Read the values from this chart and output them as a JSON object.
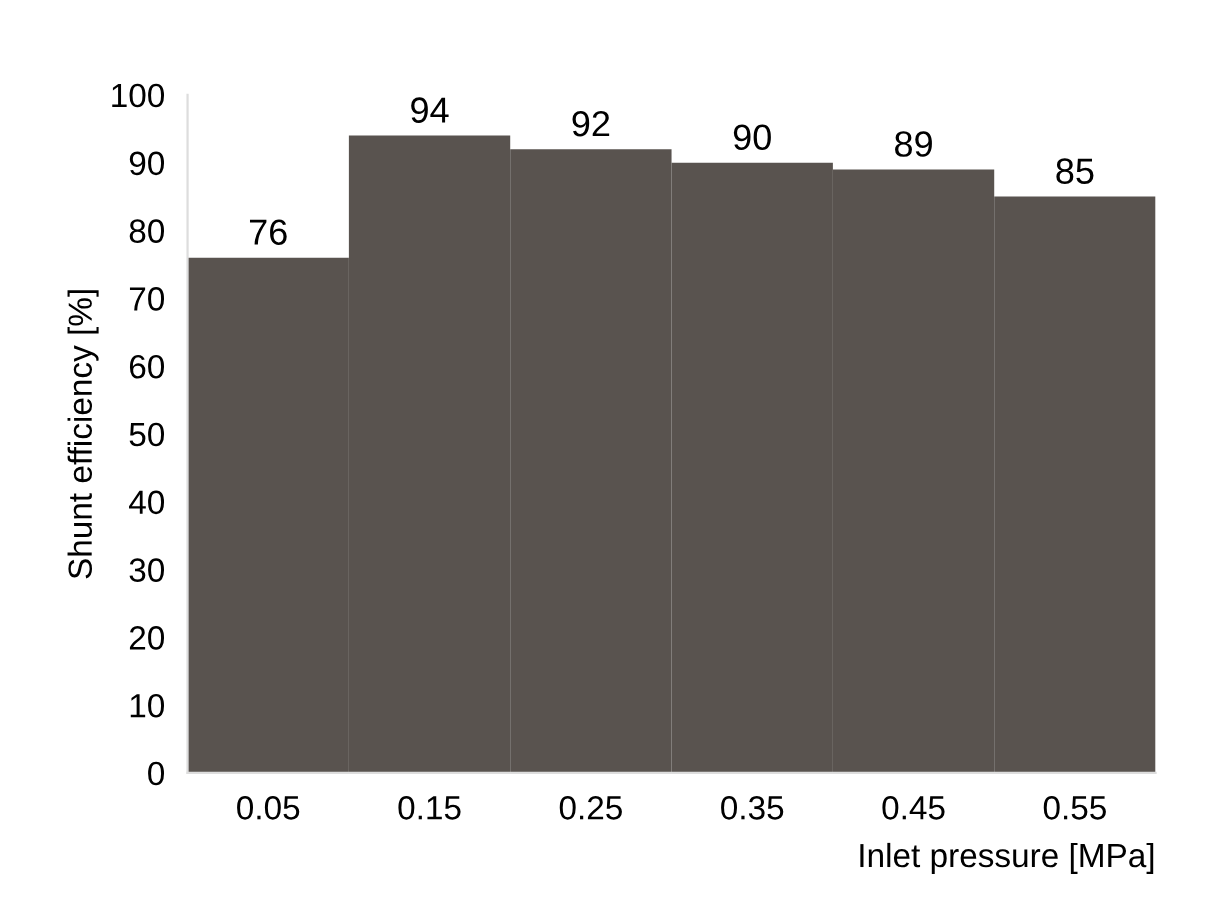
{
  "chart_data": {
    "type": "bar",
    "xlabel": "Inlet pressure [MPa]",
    "ylabel": "Shunt efficiency [%]",
    "categories": [
      "0.05",
      "0.15",
      "0.25",
      "0.35",
      "0.45",
      "0.55"
    ],
    "values": [
      76,
      94,
      92,
      90,
      89,
      85
    ],
    "color": "#59534f",
    "ylim": [
      0,
      100
    ],
    "yticks": [
      0,
      10,
      20,
      30,
      40,
      50,
      60,
      70,
      80,
      90,
      100
    ],
    "data_labels": true,
    "grid": false,
    "legend": false
  }
}
